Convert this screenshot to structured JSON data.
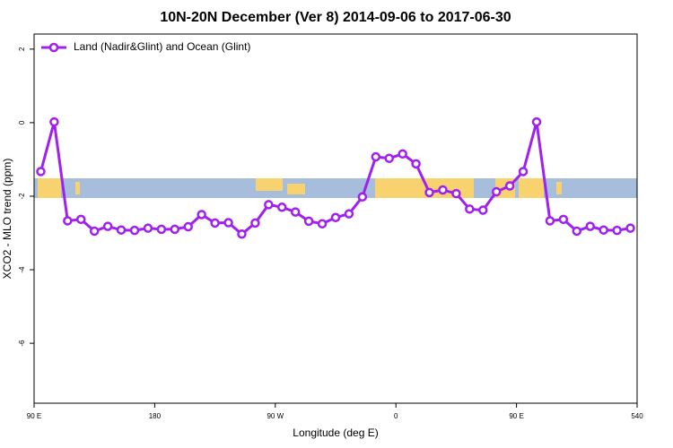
{
  "chart_data": {
    "type": "line",
    "title": "10N-20N December (Ver 8)   2014-09-06 to 2017-06-30",
    "xlabel": "Longitude (deg E)",
    "ylabel": "XCO2 - MLO trend (ppm)",
    "x": [
      95,
      105,
      115,
      125,
      135,
      145,
      155,
      165,
      175,
      185,
      195,
      205,
      215,
      225,
      235,
      245,
      255,
      265,
      275,
      285,
      295,
      305,
      315,
      325,
      335,
      345,
      355,
      365,
      375,
      385,
      395,
      405,
      415,
      425,
      435,
      445,
      455,
      465,
      475,
      485,
      495,
      505,
      515,
      525,
      535
    ],
    "series": [
      {
        "name": "Land (Nadir&Glint) and Ocean (Glint)",
        "color": "#a020f0",
        "values": [
          -1.33,
          0.02,
          -2.67,
          -2.63,
          -2.95,
          -2.82,
          -2.92,
          -2.93,
          -2.87,
          -2.9,
          -2.9,
          -2.83,
          -2.5,
          -2.73,
          -2.72,
          -3.03,
          -2.73,
          -2.23,
          -2.3,
          -2.43,
          -2.68,
          -2.75,
          -2.58,
          -2.48,
          -2.02,
          -0.93,
          -0.97,
          -0.85,
          -1.12,
          -1.9,
          -1.83,
          -1.93,
          -2.35,
          -2.38,
          -1.88,
          -1.72,
          -1.33,
          0.02,
          -2.67,
          -2.63,
          -2.95,
          -2.82,
          -2.92,
          -2.93,
          -2.87
        ]
      }
    ],
    "xlim": [
      90,
      540
    ],
    "xticks": [
      {
        "value": 90,
        "label": "90 E"
      },
      180,
      {
        "value": 270,
        "label": "90 W"
      },
      {
        "value": 360,
        "label": "0"
      },
      {
        "value": 450,
        "label": "90 E"
      },
      540
    ],
    "ylim": [
      -7.63,
      2.41
    ],
    "yticks": [
      -6,
      -4,
      -2,
      0,
      2
    ],
    "legend": "top-left"
  }
}
